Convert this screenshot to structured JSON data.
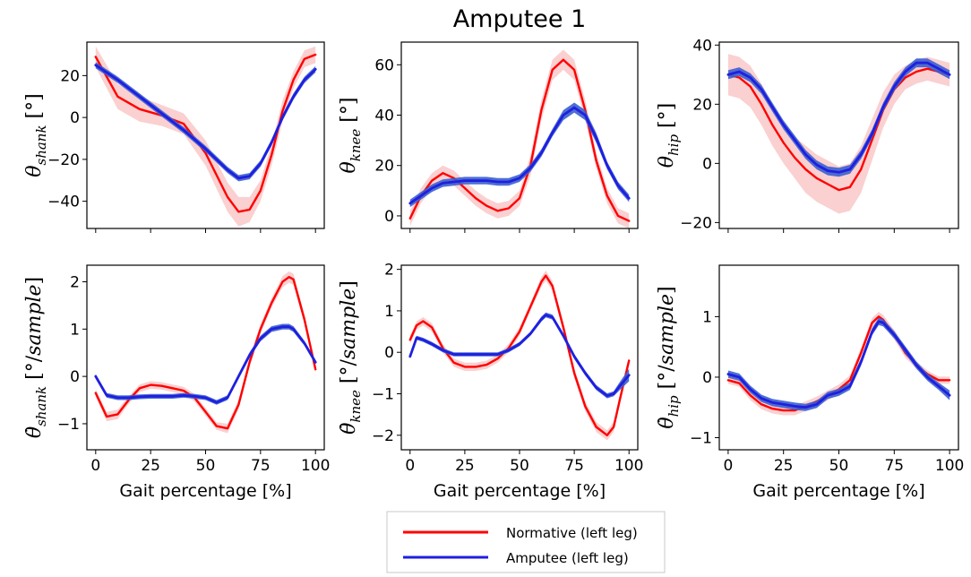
{
  "title": "Amputee 1",
  "legend": {
    "entries": [
      {
        "label": "Normative (left leg)",
        "color": "#ff0000"
      },
      {
        "label": "Amputee (left leg)",
        "color": "#1f1fe0"
      }
    ]
  },
  "colors": {
    "normative": "#ff0000",
    "amputee": "#1f1fe0",
    "band": "#f8c0c0",
    "amputee_band": "#3a5fcf"
  },
  "chart_data": [
    {
      "type": "line",
      "id": "shank",
      "ylabel": "θ_shank [°]",
      "ylabel_parts": [
        "θ",
        "shank",
        " [°]"
      ],
      "xlabel": "",
      "ylim": [
        -53,
        36
      ],
      "yticks": [
        -40,
        -20,
        0,
        20
      ],
      "xlim": [
        -4,
        104
      ],
      "xticks": [
        0,
        25,
        50,
        75,
        100
      ],
      "x": [
        0,
        10,
        20,
        30,
        40,
        50,
        60,
        65,
        70,
        75,
        80,
        85,
        90,
        95,
        100
      ],
      "series": [
        {
          "name": "Normative (left leg)",
          "values": [
            29,
            10,
            4,
            1,
            -3,
            -17,
            -38,
            -45,
            -44,
            -35,
            -18,
            3,
            18,
            28,
            30
          ],
          "band": [
            5,
            6,
            6,
            5,
            5,
            6,
            7,
            7,
            6,
            5,
            5,
            5,
            4,
            4,
            4
          ]
        },
        {
          "name": "Amputee (left leg)",
          "values": [
            25,
            18,
            10,
            2,
            -6,
            -15,
            -25,
            -29,
            -28,
            -22,
            -12,
            0,
            10,
            18,
            23
          ],
          "band": [
            1.5,
            1.5,
            1.5,
            1.5,
            1.5,
            1.5,
            1.5,
            1.5,
            1.5,
            1.5,
            1.5,
            1.5,
            1.5,
            1.5,
            1.5
          ]
        }
      ]
    },
    {
      "type": "line",
      "id": "knee",
      "ylabel": "θ_knee [°]",
      "ylabel_parts": [
        "θ",
        "knee",
        " [°]"
      ],
      "xlabel": "",
      "ylim": [
        -5,
        69
      ],
      "yticks": [
        0,
        20,
        40,
        60
      ],
      "xlim": [
        -4,
        104
      ],
      "xticks": [
        0,
        25,
        50,
        75,
        100
      ],
      "x": [
        0,
        5,
        10,
        15,
        20,
        25,
        30,
        35,
        40,
        45,
        50,
        55,
        60,
        65,
        70,
        75,
        80,
        85,
        90,
        95,
        100
      ],
      "series": [
        {
          "name": "Normative (left leg)",
          "values": [
            -1,
            8,
            14,
            17,
            15,
            11,
            7,
            4,
            2,
            3,
            7,
            20,
            42,
            58,
            62,
            58,
            42,
            22,
            8,
            0,
            -2
          ],
          "band": [
            3,
            3,
            3,
            3,
            3,
            3,
            3,
            3,
            3,
            3,
            3,
            4,
            4,
            4,
            4,
            4,
            4,
            3,
            3,
            3,
            3
          ]
        },
        {
          "name": "Amputee (left leg)",
          "values": [
            5,
            8,
            11,
            13,
            13.5,
            14,
            14,
            14,
            13.5,
            13.5,
            15,
            19,
            25,
            33,
            40,
            43,
            40,
            31,
            20,
            12,
            7
          ],
          "band": [
            1.5,
            1.5,
            1.5,
            1.5,
            1.5,
            1.5,
            1.5,
            1.5,
            1.5,
            1.5,
            1.5,
            1.5,
            1.5,
            1.5,
            2,
            2,
            2,
            2,
            1.5,
            1.5,
            1.5
          ]
        }
      ]
    },
    {
      "type": "line",
      "id": "hip",
      "ylabel": "θ_hip [°]",
      "ylabel_parts": [
        "θ",
        "hip",
        " [°]"
      ],
      "xlabel": "",
      "ylim": [
        -22,
        41
      ],
      "yticks": [
        -20,
        0,
        20,
        40
      ],
      "xlim": [
        -4,
        104
      ],
      "xticks": [
        0,
        25,
        50,
        75,
        100
      ],
      "x": [
        0,
        5,
        10,
        15,
        20,
        25,
        30,
        35,
        40,
        45,
        50,
        55,
        60,
        65,
        70,
        75,
        80,
        85,
        90,
        95,
        100
      ],
      "series": [
        {
          "name": "Normative (left leg)",
          "values": [
            30,
            29,
            26,
            20,
            13,
            7,
            2,
            -2,
            -5,
            -7,
            -9,
            -8,
            -2,
            8,
            18,
            25,
            29,
            31,
            32,
            31,
            30
          ],
          "band": [
            7,
            7,
            7,
            7,
            7,
            7,
            7,
            8,
            8,
            8,
            8,
            8,
            8,
            7,
            6,
            5,
            4,
            4,
            4,
            4,
            4
          ]
        },
        {
          "name": "Amputee (left leg)",
          "values": [
            30,
            31,
            29,
            25,
            19,
            13,
            8,
            3,
            -0.5,
            -2.5,
            -3,
            -2,
            3,
            10,
            19,
            26,
            31,
            34,
            34,
            32,
            30
          ],
          "band": [
            1.5,
            1.5,
            1.5,
            1.5,
            1.5,
            1.5,
            1.5,
            1.5,
            1.5,
            1.5,
            1.5,
            1.5,
            1.5,
            1.5,
            1.5,
            1.5,
            1.5,
            1.5,
            1.5,
            1.5,
            1.5
          ]
        }
      ]
    },
    {
      "type": "line",
      "id": "shank_dot",
      "ylabel": "θ̇_shank [°/sample]",
      "ylabel_parts": [
        "θ̇",
        "shank",
        " [°/",
        "sample",
        "]"
      ],
      "xlabel": "Gait percentage [%]",
      "ylim": [
        -1.55,
        2.35
      ],
      "yticks": [
        -1,
        0,
        1,
        2
      ],
      "xlim": [
        -4,
        104
      ],
      "xticks": [
        0,
        25,
        50,
        75,
        100
      ],
      "x": [
        0,
        5,
        10,
        15,
        20,
        25,
        30,
        35,
        40,
        45,
        50,
        55,
        60,
        65,
        70,
        75,
        80,
        85,
        88,
        90,
        95,
        100
      ],
      "series": [
        {
          "name": "Normative (left leg)",
          "values": [
            -0.35,
            -0.85,
            -0.8,
            -0.5,
            -0.25,
            -0.18,
            -0.2,
            -0.25,
            -0.3,
            -0.45,
            -0.75,
            -1.05,
            -1.1,
            -0.6,
            0.3,
            1.0,
            1.55,
            2.0,
            2.1,
            2.05,
            1.2,
            0.15
          ],
          "band": [
            0.08,
            0.1,
            0.1,
            0.08,
            0.08,
            0.08,
            0.08,
            0.08,
            0.08,
            0.08,
            0.08,
            0.08,
            0.1,
            0.1,
            0.1,
            0.1,
            0.1,
            0.12,
            0.12,
            0.12,
            0.1,
            0.08
          ]
        },
        {
          "name": "Amputee (left leg)",
          "values": [
            0.0,
            -0.4,
            -0.45,
            -0.45,
            -0.43,
            -0.42,
            -0.42,
            -0.42,
            -0.4,
            -0.42,
            -0.45,
            -0.55,
            -0.45,
            0.0,
            0.45,
            0.8,
            1.0,
            1.05,
            1.05,
            1.0,
            0.7,
            0.3
          ],
          "band": [
            0.05,
            0.05,
            0.05,
            0.05,
            0.05,
            0.05,
            0.05,
            0.05,
            0.05,
            0.05,
            0.05,
            0.05,
            0.05,
            0.05,
            0.06,
            0.06,
            0.06,
            0.06,
            0.06,
            0.06,
            0.05,
            0.05
          ]
        }
      ]
    },
    {
      "type": "line",
      "id": "knee_dot",
      "ylabel": "θ̇_knee [°/sample]",
      "ylabel_parts": [
        "θ̇",
        "knee",
        " [°/",
        "sample",
        "]"
      ],
      "xlabel": "Gait percentage [%]",
      "ylim": [
        -2.35,
        2.1
      ],
      "yticks": [
        -2,
        -1,
        0,
        1,
        2
      ],
      "xlim": [
        -4,
        104
      ],
      "xticks": [
        0,
        25,
        50,
        75,
        100
      ],
      "x": [
        0,
        3,
        6,
        10,
        15,
        20,
        25,
        30,
        35,
        40,
        45,
        50,
        55,
        60,
        62,
        65,
        70,
        75,
        80,
        85,
        90,
        93,
        96,
        100
      ],
      "series": [
        {
          "name": "Normative (left leg)",
          "values": [
            0.3,
            0.65,
            0.75,
            0.6,
            0.1,
            -0.25,
            -0.35,
            -0.35,
            -0.3,
            -0.15,
            0.1,
            0.5,
            1.1,
            1.7,
            1.85,
            1.6,
            0.6,
            -0.5,
            -1.3,
            -1.8,
            -2.0,
            -1.8,
            -1.1,
            -0.2
          ],
          "band": [
            0.1,
            0.1,
            0.1,
            0.1,
            0.1,
            0.1,
            0.1,
            0.1,
            0.1,
            0.1,
            0.1,
            0.1,
            0.1,
            0.12,
            0.12,
            0.12,
            0.12,
            0.12,
            0.12,
            0.12,
            0.12,
            0.12,
            0.12,
            0.1
          ]
        },
        {
          "name": "Amputee (left leg)",
          "values": [
            -0.1,
            0.35,
            0.3,
            0.2,
            0.05,
            -0.05,
            -0.05,
            -0.05,
            -0.05,
            -0.05,
            0.05,
            0.2,
            0.45,
            0.8,
            0.9,
            0.85,
            0.4,
            -0.1,
            -0.5,
            -0.85,
            -1.05,
            -1.0,
            -0.8,
            -0.55
          ],
          "band": [
            0.05,
            0.05,
            0.05,
            0.05,
            0.05,
            0.05,
            0.05,
            0.05,
            0.05,
            0.05,
            0.05,
            0.05,
            0.05,
            0.06,
            0.06,
            0.06,
            0.06,
            0.06,
            0.06,
            0.06,
            0.06,
            0.06,
            0.1,
            0.15
          ]
        }
      ]
    },
    {
      "type": "line",
      "id": "hip_dot",
      "ylabel": "θ̇_hip [°/sample]",
      "ylabel_parts": [
        "θ̇",
        "hip",
        " [°/",
        "sample",
        "]"
      ],
      "xlabel": "Gait percentage [%]",
      "ylim": [
        -1.2,
        1.85
      ],
      "yticks": [
        -1,
        0,
        1
      ],
      "xlim": [
        -4,
        104
      ],
      "xticks": [
        0,
        25,
        50,
        75,
        100
      ],
      "x": [
        0,
        5,
        10,
        15,
        20,
        25,
        30,
        35,
        40,
        45,
        50,
        55,
        60,
        65,
        68,
        70,
        75,
        80,
        85,
        90,
        95,
        100
      ],
      "series": [
        {
          "name": "Normative (left leg)",
          "values": [
            -0.05,
            -0.1,
            -0.3,
            -0.45,
            -0.52,
            -0.55,
            -0.55,
            -0.48,
            -0.4,
            -0.3,
            -0.2,
            -0.05,
            0.4,
            0.9,
            1.0,
            0.95,
            0.7,
            0.4,
            0.2,
            0.05,
            -0.05,
            -0.05
          ],
          "band": [
            0.06,
            0.06,
            0.08,
            0.08,
            0.08,
            0.08,
            0.08,
            0.08,
            0.08,
            0.08,
            0.08,
            0.08,
            0.08,
            0.08,
            0.08,
            0.08,
            0.08,
            0.08,
            0.06,
            0.06,
            0.06,
            0.06
          ]
        },
        {
          "name": "Amputee (left leg)",
          "values": [
            0.05,
            0.0,
            -0.2,
            -0.35,
            -0.42,
            -0.45,
            -0.48,
            -0.5,
            -0.45,
            -0.3,
            -0.25,
            -0.15,
            0.25,
            0.75,
            0.92,
            0.9,
            0.7,
            0.45,
            0.2,
            0.0,
            -0.15,
            -0.3
          ],
          "band": [
            0.06,
            0.06,
            0.06,
            0.06,
            0.06,
            0.06,
            0.06,
            0.06,
            0.06,
            0.06,
            0.06,
            0.06,
            0.06,
            0.06,
            0.06,
            0.06,
            0.06,
            0.06,
            0.06,
            0.06,
            0.06,
            0.08
          ]
        }
      ]
    }
  ]
}
